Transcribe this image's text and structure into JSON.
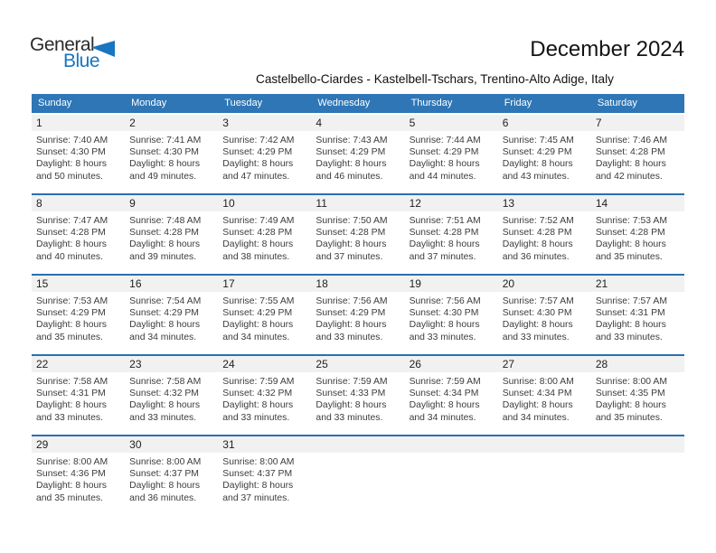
{
  "logo": {
    "word_general": "General",
    "word_blue": "Blue",
    "triangle_icon": "blue-pennant-triangle"
  },
  "header": {
    "title": "December 2024",
    "subtitle": "Castelbello-Ciardes - Kastelbell-Tschars, Trentino-Alto Adige, Italy"
  },
  "colors": {
    "header_blue": "#2E76B6",
    "row_line_blue": "#2A70B0",
    "band_gray": "#F1F1F1",
    "logo_blue": "#1776BF",
    "text_dark": "#3C3C3C"
  },
  "calendar": {
    "weekday_headers": [
      "Sunday",
      "Monday",
      "Tuesday",
      "Wednesday",
      "Thursday",
      "Friday",
      "Saturday"
    ],
    "weeks": [
      [
        {
          "date": "1",
          "sunrise": "Sunrise: 7:40 AM",
          "sunset": "Sunset: 4:30 PM",
          "daylight": "Daylight: 8 hours and 50 minutes."
        },
        {
          "date": "2",
          "sunrise": "Sunrise: 7:41 AM",
          "sunset": "Sunset: 4:30 PM",
          "daylight": "Daylight: 8 hours and 49 minutes."
        },
        {
          "date": "3",
          "sunrise": "Sunrise: 7:42 AM",
          "sunset": "Sunset: 4:29 PM",
          "daylight": "Daylight: 8 hours and 47 minutes."
        },
        {
          "date": "4",
          "sunrise": "Sunrise: 7:43 AM",
          "sunset": "Sunset: 4:29 PM",
          "daylight": "Daylight: 8 hours and 46 minutes."
        },
        {
          "date": "5",
          "sunrise": "Sunrise: 7:44 AM",
          "sunset": "Sunset: 4:29 PM",
          "daylight": "Daylight: 8 hours and 44 minutes."
        },
        {
          "date": "6",
          "sunrise": "Sunrise: 7:45 AM",
          "sunset": "Sunset: 4:29 PM",
          "daylight": "Daylight: 8 hours and 43 minutes."
        },
        {
          "date": "7",
          "sunrise": "Sunrise: 7:46 AM",
          "sunset": "Sunset: 4:28 PM",
          "daylight": "Daylight: 8 hours and 42 minutes."
        }
      ],
      [
        {
          "date": "8",
          "sunrise": "Sunrise: 7:47 AM",
          "sunset": "Sunset: 4:28 PM",
          "daylight": "Daylight: 8 hours and 40 minutes."
        },
        {
          "date": "9",
          "sunrise": "Sunrise: 7:48 AM",
          "sunset": "Sunset: 4:28 PM",
          "daylight": "Daylight: 8 hours and 39 minutes."
        },
        {
          "date": "10",
          "sunrise": "Sunrise: 7:49 AM",
          "sunset": "Sunset: 4:28 PM",
          "daylight": "Daylight: 8 hours and 38 minutes."
        },
        {
          "date": "11",
          "sunrise": "Sunrise: 7:50 AM",
          "sunset": "Sunset: 4:28 PM",
          "daylight": "Daylight: 8 hours and 37 minutes."
        },
        {
          "date": "12",
          "sunrise": "Sunrise: 7:51 AM",
          "sunset": "Sunset: 4:28 PM",
          "daylight": "Daylight: 8 hours and 37 minutes."
        },
        {
          "date": "13",
          "sunrise": "Sunrise: 7:52 AM",
          "sunset": "Sunset: 4:28 PM",
          "daylight": "Daylight: 8 hours and 36 minutes."
        },
        {
          "date": "14",
          "sunrise": "Sunrise: 7:53 AM",
          "sunset": "Sunset: 4:28 PM",
          "daylight": "Daylight: 8 hours and 35 minutes."
        }
      ],
      [
        {
          "date": "15",
          "sunrise": "Sunrise: 7:53 AM",
          "sunset": "Sunset: 4:29 PM",
          "daylight": "Daylight: 8 hours and 35 minutes."
        },
        {
          "date": "16",
          "sunrise": "Sunrise: 7:54 AM",
          "sunset": "Sunset: 4:29 PM",
          "daylight": "Daylight: 8 hours and 34 minutes."
        },
        {
          "date": "17",
          "sunrise": "Sunrise: 7:55 AM",
          "sunset": "Sunset: 4:29 PM",
          "daylight": "Daylight: 8 hours and 34 minutes."
        },
        {
          "date": "18",
          "sunrise": "Sunrise: 7:56 AM",
          "sunset": "Sunset: 4:29 PM",
          "daylight": "Daylight: 8 hours and 33 minutes."
        },
        {
          "date": "19",
          "sunrise": "Sunrise: 7:56 AM",
          "sunset": "Sunset: 4:30 PM",
          "daylight": "Daylight: 8 hours and 33 minutes."
        },
        {
          "date": "20",
          "sunrise": "Sunrise: 7:57 AM",
          "sunset": "Sunset: 4:30 PM",
          "daylight": "Daylight: 8 hours and 33 minutes."
        },
        {
          "date": "21",
          "sunrise": "Sunrise: 7:57 AM",
          "sunset": "Sunset: 4:31 PM",
          "daylight": "Daylight: 8 hours and 33 minutes."
        }
      ],
      [
        {
          "date": "22",
          "sunrise": "Sunrise: 7:58 AM",
          "sunset": "Sunset: 4:31 PM",
          "daylight": "Daylight: 8 hours and 33 minutes."
        },
        {
          "date": "23",
          "sunrise": "Sunrise: 7:58 AM",
          "sunset": "Sunset: 4:32 PM",
          "daylight": "Daylight: 8 hours and 33 minutes."
        },
        {
          "date": "24",
          "sunrise": "Sunrise: 7:59 AM",
          "sunset": "Sunset: 4:32 PM",
          "daylight": "Daylight: 8 hours and 33 minutes."
        },
        {
          "date": "25",
          "sunrise": "Sunrise: 7:59 AM",
          "sunset": "Sunset: 4:33 PM",
          "daylight": "Daylight: 8 hours and 33 minutes."
        },
        {
          "date": "26",
          "sunrise": "Sunrise: 7:59 AM",
          "sunset": "Sunset: 4:34 PM",
          "daylight": "Daylight: 8 hours and 34 minutes."
        },
        {
          "date": "27",
          "sunrise": "Sunrise: 8:00 AM",
          "sunset": "Sunset: 4:34 PM",
          "daylight": "Daylight: 8 hours and 34 minutes."
        },
        {
          "date": "28",
          "sunrise": "Sunrise: 8:00 AM",
          "sunset": "Sunset: 4:35 PM",
          "daylight": "Daylight: 8 hours and 35 minutes."
        }
      ],
      [
        {
          "date": "29",
          "sunrise": "Sunrise: 8:00 AM",
          "sunset": "Sunset: 4:36 PM",
          "daylight": "Daylight: 8 hours and 35 minutes."
        },
        {
          "date": "30",
          "sunrise": "Sunrise: 8:00 AM",
          "sunset": "Sunset: 4:37 PM",
          "daylight": "Daylight: 8 hours and 36 minutes."
        },
        {
          "date": "31",
          "sunrise": "Sunrise: 8:00 AM",
          "sunset": "Sunset: 4:37 PM",
          "daylight": "Daylight: 8 hours and 37 minutes."
        },
        null,
        null,
        null,
        null
      ]
    ]
  }
}
